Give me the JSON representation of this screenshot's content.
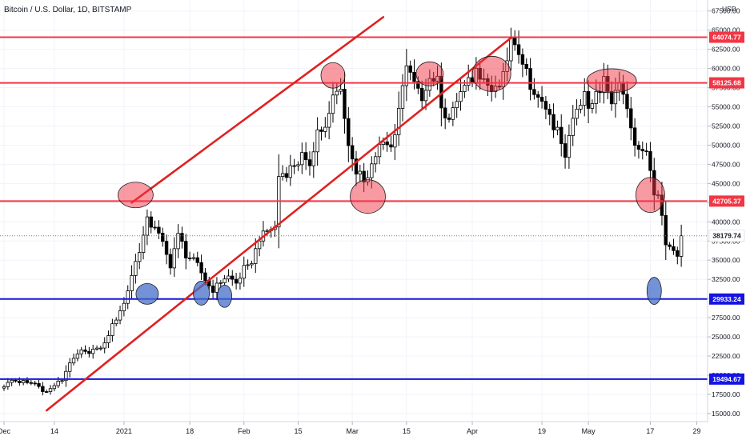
{
  "chart_data": {
    "type": "candlestick",
    "title": "Bitcoin / U.S. Dollar, 1D, BITSTAMP",
    "currency": "USD",
    "y_range": [
      14000,
      67500
    ],
    "y_ticks": [
      15000,
      17500,
      20000,
      22500,
      25000,
      27500,
      30000,
      32500,
      35000,
      37500,
      40000,
      42500,
      45000,
      47500,
      50000,
      52500,
      55000,
      57500,
      60000,
      62500,
      65000,
      67500
    ],
    "y_tick_labels": [
      "15000.00",
      "17500.00",
      "20000.00",
      "22500.00",
      "25000.00",
      "27500.00",
      "30000.00",
      "32500.00",
      "35000.00",
      "37500.00",
      "40000.00",
      "42500.00",
      "45000.00",
      "47500.00",
      "50000.00",
      "52500.00",
      "55000.00",
      "57500.00",
      "60000.00",
      "62500.00",
      "65000.00",
      "67500.00"
    ],
    "x_labels": [
      {
        "label": "Dec",
        "day": 0
      },
      {
        "label": "14",
        "day": 13
      },
      {
        "label": "2021",
        "day": 31
      },
      {
        "label": "18",
        "day": 48
      },
      {
        "label": "Feb",
        "day": 62
      },
      {
        "label": "15",
        "day": 76
      },
      {
        "label": "Mar",
        "day": 90
      },
      {
        "label": "15",
        "day": 104
      },
      {
        "label": "Apr",
        "day": 121
      },
      {
        "label": "19",
        "day": 139
      },
      {
        "label": "May",
        "day": 151
      },
      {
        "label": "17",
        "day": 167
      },
      {
        "label": "29",
        "day": 179
      }
    ],
    "last_day": 175,
    "anchors": [
      [
        0,
        18500
      ],
      [
        2,
        19300
      ],
      [
        5,
        19100
      ],
      [
        8,
        18900
      ],
      [
        11,
        17800
      ],
      [
        13,
        18700
      ],
      [
        15,
        19300
      ],
      [
        17,
        21800
      ],
      [
        20,
        23000
      ],
      [
        23,
        23300
      ],
      [
        26,
        24000
      ],
      [
        29,
        27500
      ],
      [
        31,
        29300
      ],
      [
        33,
        33000
      ],
      [
        35,
        36500
      ],
      [
        37,
        40000
      ],
      [
        39,
        39300
      ],
      [
        41,
        37000
      ],
      [
        43,
        34500
      ],
      [
        45,
        38500
      ],
      [
        47,
        35800
      ],
      [
        50,
        34200
      ],
      [
        52,
        32500
      ],
      [
        54,
        30800
      ],
      [
        56,
        32300
      ],
      [
        58,
        32800
      ],
      [
        60,
        32000
      ],
      [
        62,
        33800
      ],
      [
        64,
        35000
      ],
      [
        66,
        37500
      ],
      [
        68,
        38800
      ],
      [
        70,
        39200
      ],
      [
        71,
        46000
      ],
      [
        73,
        46600
      ],
      [
        75,
        47300
      ],
      [
        77,
        48500
      ],
      [
        79,
        47700
      ],
      [
        81,
        52000
      ],
      [
        83,
        52000
      ],
      [
        85,
        56300
      ],
      [
        87,
        57300
      ],
      [
        89,
        49800
      ],
      [
        91,
        46600
      ],
      [
        93,
        45200
      ],
      [
        94,
        45500
      ],
      [
        96,
        48500
      ],
      [
        98,
        50500
      ],
      [
        100,
        49600
      ],
      [
        102,
        54800
      ],
      [
        103,
        57000
      ],
      [
        104,
        61000
      ],
      [
        106,
        58000
      ],
      [
        108,
        55800
      ],
      [
        110,
        57800
      ],
      [
        112,
        58900
      ],
      [
        113,
        54600
      ],
      [
        115,
        52500
      ],
      [
        117,
        55700
      ],
      [
        119,
        57000
      ],
      [
        120,
        58800
      ],
      [
        122,
        59000
      ],
      [
        124,
        58200
      ],
      [
        126,
        57000
      ],
      [
        128,
        58000
      ],
      [
        129,
        59600
      ],
      [
        131,
        64200
      ],
      [
        133,
        62000
      ],
      [
        135,
        60000
      ],
      [
        137,
        56500
      ],
      [
        139,
        56000
      ],
      [
        141,
        54000
      ],
      [
        143,
        51500
      ],
      [
        145,
        48900
      ],
      [
        147,
        53500
      ],
      [
        148,
        55000
      ],
      [
        150,
        57000
      ],
      [
        151,
        54000
      ],
      [
        153,
        57000
      ],
      [
        155,
        58000
      ],
      [
        157,
        56000
      ],
      [
        159,
        58200
      ],
      [
        161,
        55000
      ],
      [
        163,
        49500
      ],
      [
        164,
        50000
      ],
      [
        166,
        48500
      ],
      [
        168,
        43500
      ],
      [
        169,
        42800
      ],
      [
        170,
        40500
      ],
      [
        171,
        37000
      ],
      [
        172,
        37200
      ],
      [
        174,
        35500
      ],
      [
        175,
        38179.74
      ]
    ],
    "series": [
      {
        "role": "resistance",
        "value": 64074.77,
        "label": "64074.77",
        "color": "#f23645"
      },
      {
        "role": "resistance",
        "value": 58125.68,
        "label": "58125.68",
        "color": "#f23645"
      },
      {
        "role": "resistance",
        "value": 42705.37,
        "label": "42705.37",
        "color": "#f23645"
      },
      {
        "role": "last-price",
        "value": 38179.74,
        "label": "38179.74",
        "color": "#131722"
      },
      {
        "role": "support",
        "value": 29933.24,
        "label": "29933.24",
        "color": "#1515e0"
      },
      {
        "role": "support",
        "value": 19494.67,
        "label": "19494.67",
        "color": "#1515e0"
      }
    ],
    "channel": {
      "color": "#e02020",
      "upper": [
        [
          33,
          42500
        ],
        [
          98,
          66700
        ]
      ],
      "lower": [
        [
          11,
          15400
        ],
        [
          131,
          64000
        ]
      ]
    },
    "red_markers": [
      {
        "day": 34,
        "price": 43500
      },
      {
        "day": 85,
        "price": 59100
      },
      {
        "day": 94,
        "price": 43300
      },
      {
        "day": 110,
        "price": 59300
      },
      {
        "day": 126,
        "price": 59300
      },
      {
        "day": 157,
        "price": 58400
      },
      {
        "day": 167,
        "price": 43500
      }
    ],
    "blue_markers": [
      {
        "day": 37,
        "price": 30600
      },
      {
        "day": 51,
        "price": 30700
      },
      {
        "day": 57,
        "price": 30300
      },
      {
        "day": 168,
        "price": 31000
      }
    ]
  },
  "colors": {
    "bull": "#ffffff",
    "bear": "#000000",
    "wick": "#000000",
    "grid": "#f0f3fa",
    "axis": "#b2b5be",
    "text": "#131722"
  }
}
